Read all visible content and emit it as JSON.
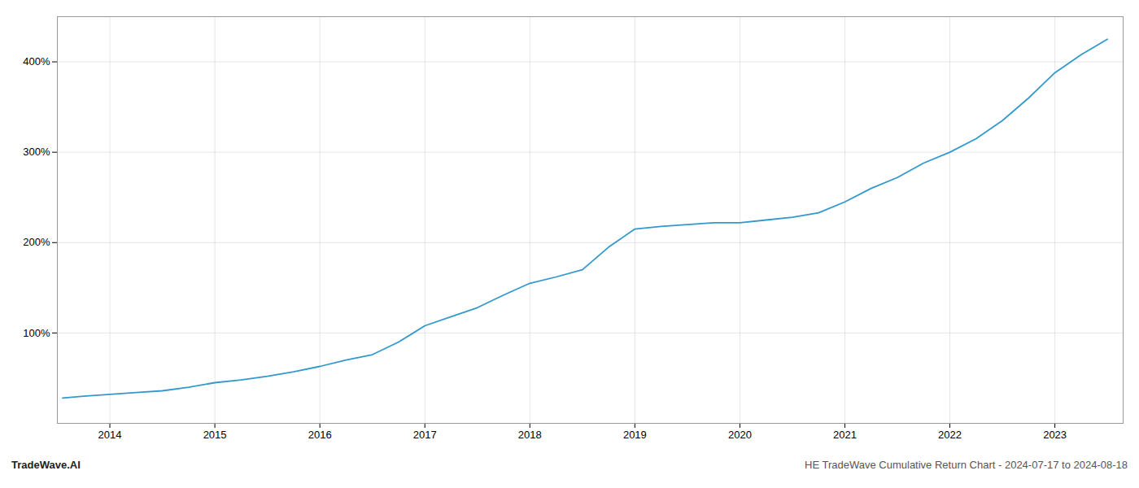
{
  "chart_data": {
    "type": "line",
    "title": "HE TradeWave Cumulative Return Chart - 2024-07-17 to 2024-08-18",
    "annotations": [
      "TradeWave.AI"
    ],
    "x": [
      2013.55,
      2013.75,
      2014.0,
      2014.25,
      2014.5,
      2014.75,
      2015.0,
      2015.25,
      2015.5,
      2015.75,
      2016.0,
      2016.25,
      2016.5,
      2016.75,
      2017.0,
      2017.25,
      2017.5,
      2017.75,
      2018.0,
      2018.25,
      2018.5,
      2018.75,
      2019.0,
      2019.25,
      2019.5,
      2019.75,
      2020.0,
      2020.25,
      2020.5,
      2020.75,
      2021.0,
      2021.25,
      2021.5,
      2021.75,
      2022.0,
      2022.25,
      2022.5,
      2022.75,
      2023.0,
      2023.25,
      2023.5
    ],
    "values": [
      28,
      30,
      32,
      34,
      36,
      40,
      45,
      48,
      52,
      57,
      63,
      70,
      76,
      90,
      108,
      118,
      128,
      142,
      155,
      162,
      170,
      195,
      215,
      218,
      220,
      222,
      222,
      225,
      228,
      233,
      245,
      260,
      272,
      288,
      300,
      315,
      335,
      360,
      388,
      408,
      425
    ],
    "color": "#3399cc",
    "xlim": [
      2013.5,
      2023.65
    ],
    "xticks": [
      2014,
      2015,
      2016,
      2017,
      2018,
      2019,
      2020,
      2021,
      2022,
      2023
    ],
    "ylim": [
      0,
      450
    ],
    "yticks": [
      {
        "value": 100,
        "label": "100%"
      },
      {
        "value": 200,
        "label": "200%"
      },
      {
        "value": 300,
        "label": "300%"
      },
      {
        "value": 400,
        "label": "400%"
      }
    ],
    "grid": true
  }
}
